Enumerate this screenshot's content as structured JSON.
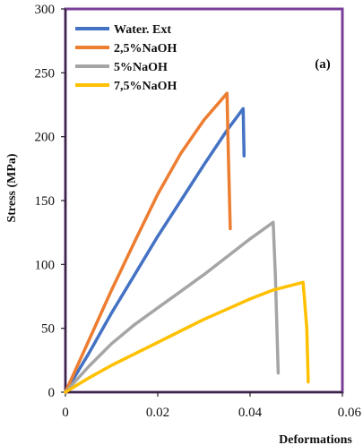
{
  "chart_data": {
    "type": "line",
    "panel_label": "(a)",
    "xlabel": "Deformations",
    "ylabel": "Stress  (MPa)",
    "xlim": [
      0,
      0.06
    ],
    "ylim": [
      0,
      300
    ],
    "x_ticks": [
      0,
      0.02,
      0.04,
      0.06
    ],
    "x_tick_labels": [
      "0",
      "0.02",
      "0.04",
      "0.06"
    ],
    "y_ticks": [
      0,
      50,
      100,
      150,
      200,
      250,
      300
    ],
    "y_tick_labels": [
      "0",
      "50",
      "100",
      "150",
      "200",
      "250",
      "300"
    ],
    "grid": false,
    "legend_position": "top-left",
    "frame_color": "#7B3F98",
    "series": [
      {
        "name": "Water. Ext",
        "color": "#4472C4",
        "points": [
          [
            0,
            0
          ],
          [
            0.005,
            30
          ],
          [
            0.01,
            62
          ],
          [
            0.015,
            92
          ],
          [
            0.02,
            122
          ],
          [
            0.025,
            150
          ],
          [
            0.03,
            178
          ],
          [
            0.035,
            205
          ],
          [
            0.0385,
            222
          ],
          [
            0.0387,
            185
          ]
        ]
      },
      {
        "name": "2,5%NaOH",
        "color": "#ED7D31",
        "points": [
          [
            0,
            0
          ],
          [
            0.005,
            40
          ],
          [
            0.01,
            80
          ],
          [
            0.015,
            118
          ],
          [
            0.02,
            155
          ],
          [
            0.025,
            187
          ],
          [
            0.03,
            213
          ],
          [
            0.035,
            234
          ],
          [
            0.0352,
            200
          ],
          [
            0.0357,
            128
          ]
        ]
      },
      {
        "name": "5%NaOH",
        "color": "#A5A5A5",
        "points": [
          [
            0,
            0
          ],
          [
            0.005,
            20
          ],
          [
            0.01,
            38
          ],
          [
            0.015,
            53
          ],
          [
            0.02,
            66
          ],
          [
            0.025,
            79
          ],
          [
            0.03,
            92
          ],
          [
            0.035,
            106
          ],
          [
            0.04,
            120
          ],
          [
            0.045,
            133
          ],
          [
            0.0455,
            90
          ],
          [
            0.0461,
            15
          ]
        ]
      },
      {
        "name": "7,5%NaOH",
        "color": "#FFC000",
        "points": [
          [
            0,
            0
          ],
          [
            0.005,
            11
          ],
          [
            0.01,
            21
          ],
          [
            0.015,
            30
          ],
          [
            0.02,
            39
          ],
          [
            0.025,
            48
          ],
          [
            0.03,
            57
          ],
          [
            0.035,
            65
          ],
          [
            0.04,
            73
          ],
          [
            0.045,
            80
          ],
          [
            0.0515,
            86
          ],
          [
            0.0523,
            50
          ],
          [
            0.0526,
            8
          ]
        ]
      }
    ]
  }
}
